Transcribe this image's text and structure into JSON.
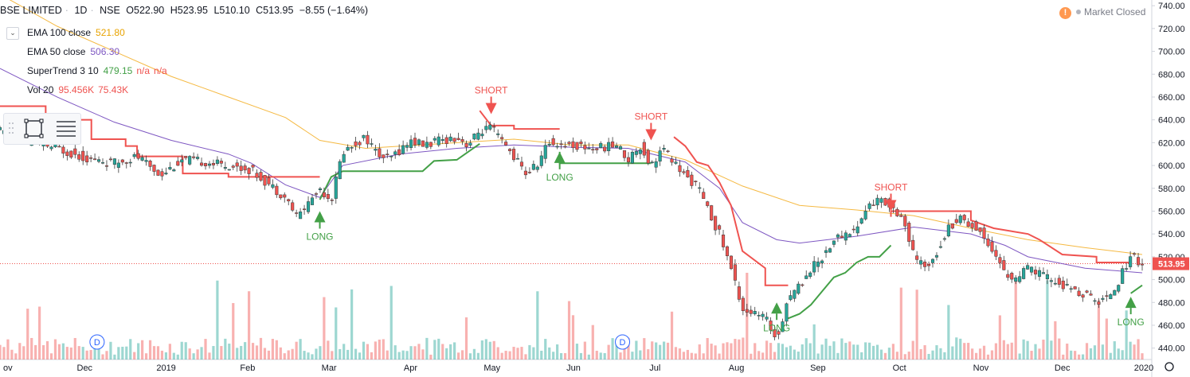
{
  "symbol": {
    "name": "BSE LIMITED",
    "interval": "1D",
    "exchange": "NSE",
    "open": "O522.90",
    "high": "H523.95",
    "low": "L510.10",
    "close": "C513.95",
    "change": "−8.55 (−1.64%)"
  },
  "status": {
    "alert_icon": "!",
    "market_label": "Market Closed"
  },
  "indicators": [
    {
      "name": "EMA 100 close",
      "values": [
        "521.80"
      ],
      "colors": [
        "#e8a300"
      ]
    },
    {
      "name": "EMA 50 close",
      "values": [
        "506.30"
      ],
      "colors": [
        "#7e57c2"
      ]
    },
    {
      "name": "SuperTrend 3 10",
      "values": [
        "479.15",
        "n/a",
        "n/a"
      ],
      "colors": [
        "#43a047",
        "#ef5350",
        "#ef5350"
      ]
    },
    {
      "name": "Vol 20",
      "values": [
        "95.456K",
        "75.43K"
      ],
      "colors": [
        "#ef5350",
        "#ef5350"
      ]
    }
  ],
  "toolbar_icons": [
    "rectangle-tool-icon",
    "menu-lines-icon"
  ],
  "chart_data": {
    "type": "candlestick",
    "ylim": [
      430,
      745
    ],
    "y_ticks": [
      "440.00",
      "460.00",
      "480.00",
      "500.00",
      "520.00",
      "540.00",
      "560.00",
      "580.00",
      "600.00",
      "620.00",
      "640.00",
      "660.00",
      "680.00",
      "700.00",
      "720.00",
      "740.00"
    ],
    "x_ticks": [
      "ov",
      "Dec",
      "2019",
      "Feb",
      "Mar",
      "Apr",
      "May",
      "Jun",
      "Jul",
      "Aug",
      "Sep",
      "Oct",
      "Nov",
      "Dec",
      "2020"
    ],
    "last_price_label": "513.95",
    "colors": {
      "up": "#26a69a",
      "down": "#ef5350",
      "ema100": "#f5b942",
      "ema50": "#7e57c2",
      "st_up": "#43a047",
      "st_down": "#ef5350",
      "last_price_line": "#ef5350"
    },
    "price_path": [
      [
        0,
        630
      ],
      [
        0.02,
        622
      ],
      [
        0.05,
        615
      ],
      [
        0.08,
        605
      ],
      [
        0.1,
        602
      ],
      [
        0.12,
        608
      ],
      [
        0.14,
        592
      ],
      [
        0.16,
        605
      ],
      [
        0.18,
        603
      ],
      [
        0.2,
        600
      ],
      [
        0.22,
        596
      ],
      [
        0.24,
        580
      ],
      [
        0.25,
        572
      ],
      [
        0.26,
        555
      ],
      [
        0.28,
        580
      ],
      [
        0.29,
        570
      ],
      [
        0.3,
        612
      ],
      [
        0.32,
        625
      ],
      [
        0.33,
        610
      ],
      [
        0.34,
        605
      ],
      [
        0.36,
        622
      ],
      [
        0.37,
        618
      ],
      [
        0.4,
        625
      ],
      [
        0.41,
        618
      ],
      [
        0.42,
        630
      ],
      [
        0.43,
        633
      ],
      [
        0.44,
        620
      ],
      [
        0.45,
        608
      ],
      [
        0.46,
        593
      ],
      [
        0.47,
        600
      ],
      [
        0.48,
        620
      ],
      [
        0.5,
        618
      ],
      [
        0.52,
        615
      ],
      [
        0.54,
        618
      ],
      [
        0.55,
        605
      ],
      [
        0.56,
        618
      ],
      [
        0.57,
        600
      ],
      [
        0.58,
        615
      ],
      [
        0.6,
        590
      ],
      [
        0.61,
        583
      ],
      [
        0.62,
        560
      ],
      [
        0.63,
        540
      ],
      [
        0.64,
        510
      ],
      [
        0.65,
        475
      ],
      [
        0.66,
        470
      ],
      [
        0.67,
        466
      ],
      [
        0.68,
        448
      ],
      [
        0.69,
        485
      ],
      [
        0.7,
        495
      ],
      [
        0.71,
        510
      ],
      [
        0.72,
        520
      ],
      [
        0.73,
        535
      ],
      [
        0.74,
        540
      ],
      [
        0.75,
        545
      ],
      [
        0.76,
        565
      ],
      [
        0.77,
        570
      ],
      [
        0.78,
        565
      ],
      [
        0.79,
        555
      ],
      [
        0.8,
        520
      ],
      [
        0.81,
        510
      ],
      [
        0.82,
        525
      ],
      [
        0.83,
        545
      ],
      [
        0.84,
        555
      ],
      [
        0.85,
        548
      ],
      [
        0.86,
        540
      ],
      [
        0.87,
        525
      ],
      [
        0.88,
        505
      ],
      [
        0.89,
        500
      ],
      [
        0.9,
        510
      ],
      [
        0.91,
        505
      ],
      [
        0.92,
        500
      ],
      [
        0.93,
        495
      ],
      [
        0.94,
        490
      ],
      [
        0.95,
        487
      ],
      [
        0.96,
        480
      ],
      [
        0.97,
        485
      ],
      [
        0.98,
        500
      ],
      [
        0.99,
        522
      ],
      [
        1,
        514
      ]
    ],
    "ema100_path": [
      [
        0,
        750
      ],
      [
        0.05,
        722
      ],
      [
        0.1,
        700
      ],
      [
        0.15,
        678
      ],
      [
        0.2,
        660
      ],
      [
        0.25,
        642
      ],
      [
        0.28,
        622
      ],
      [
        0.32,
        615
      ],
      [
        0.4,
        620
      ],
      [
        0.45,
        623
      ],
      [
        0.5,
        618
      ],
      [
        0.55,
        618
      ],
      [
        0.6,
        605
      ],
      [
        0.65,
        582
      ],
      [
        0.7,
        565
      ],
      [
        0.75,
        561
      ],
      [
        0.8,
        556
      ],
      [
        0.85,
        545
      ],
      [
        0.9,
        535
      ],
      [
        0.95,
        528
      ],
      [
        1,
        522
      ]
    ],
    "ema50_path": [
      [
        0,
        685
      ],
      [
        0.05,
        660
      ],
      [
        0.1,
        638
      ],
      [
        0.15,
        622
      ],
      [
        0.2,
        610
      ],
      [
        0.22,
        602
      ],
      [
        0.25,
        583
      ],
      [
        0.28,
        572
      ],
      [
        0.3,
        600
      ],
      [
        0.35,
        610
      ],
      [
        0.4,
        615
      ],
      [
        0.45,
        618
      ],
      [
        0.5,
        616
      ],
      [
        0.55,
        615
      ],
      [
        0.6,
        603
      ],
      [
        0.63,
        580
      ],
      [
        0.65,
        550
      ],
      [
        0.68,
        535
      ],
      [
        0.7,
        532
      ],
      [
        0.75,
        538
      ],
      [
        0.8,
        546
      ],
      [
        0.85,
        540
      ],
      [
        0.88,
        530
      ],
      [
        0.9,
        520
      ],
      [
        0.95,
        510
      ],
      [
        1,
        506
      ]
    ],
    "supertrend_down": [
      [
        [
          0,
          652
        ],
        [
          0.04,
          652
        ],
        [
          0.04,
          640
        ],
        [
          0.08,
          640
        ],
        [
          0.08,
          623
        ],
        [
          0.11,
          623
        ],
        [
          0.11,
          617
        ],
        [
          0.12,
          617
        ],
        [
          0.12,
          608
        ],
        [
          0.16,
          608
        ],
        [
          0.16,
          593
        ],
        [
          0.2,
          593
        ],
        [
          0.2,
          590
        ],
        [
          0.28,
          590
        ]
      ],
      [
        [
          0.42,
          648
        ],
        [
          0.43,
          635
        ],
        [
          0.45,
          635
        ],
        [
          0.45,
          632
        ],
        [
          0.49,
          632
        ]
      ],
      [
        [
          0.59,
          625
        ],
        [
          0.6,
          617
        ],
        [
          0.61,
          603
        ],
        [
          0.62,
          600
        ],
        [
          0.63,
          585
        ],
        [
          0.64,
          565
        ],
        [
          0.65,
          525
        ],
        [
          0.67,
          510
        ],
        [
          0.67,
          495
        ],
        [
          0.69,
          495
        ]
      ],
      [
        [
          0.78,
          555
        ],
        [
          0.78,
          560
        ],
        [
          0.83,
          560
        ],
        [
          0.85,
          560
        ],
        [
          0.85,
          552
        ],
        [
          0.87,
          545
        ],
        [
          0.9,
          540
        ],
        [
          0.91,
          535
        ],
        [
          0.93,
          522
        ],
        [
          0.96,
          520
        ],
        [
          0.96,
          515
        ],
        [
          0.99,
          515
        ]
      ]
    ],
    "supertrend_up": [
      [
        [
          0.28,
          570
        ],
        [
          0.29,
          590
        ],
        [
          0.3,
          595
        ],
        [
          0.37,
          595
        ],
        [
          0.38,
          604
        ],
        [
          0.4,
          605
        ],
        [
          0.41,
          612
        ],
        [
          0.42,
          619
        ]
      ],
      [
        [
          0.49,
          612
        ],
        [
          0.49,
          602
        ],
        [
          0.57,
          602
        ]
      ],
      [
        [
          0.69,
          466
        ],
        [
          0.7,
          470
        ],
        [
          0.71,
          478
        ],
        [
          0.72,
          490
        ],
        [
          0.73,
          502
        ],
        [
          0.74,
          506
        ],
        [
          0.75,
          515
        ],
        [
          0.76,
          520
        ],
        [
          0.77,
          520
        ],
        [
          0.78,
          530
        ]
      ],
      [
        [
          0.99,
          488
        ],
        [
          1,
          495
        ]
      ]
    ],
    "signals": [
      {
        "label": "LONG",
        "type": "buy",
        "x": 0.28,
        "y": 560
      },
      {
        "label": "SHORT",
        "type": "sell",
        "x": 0.43,
        "y": 645
      },
      {
        "label": "LONG",
        "type": "buy",
        "x": 0.49,
        "y": 612
      },
      {
        "label": "SHORT",
        "type": "sell",
        "x": 0.57,
        "y": 622
      },
      {
        "label": "LONG",
        "type": "buy",
        "x": 0.68,
        "y": 480
      },
      {
        "label": "SHORT",
        "type": "sell",
        "x": 0.78,
        "y": 560
      },
      {
        "label": "LONG",
        "type": "buy",
        "x": 0.99,
        "y": 485
      }
    ],
    "dividend_markers": [
      {
        "label": "D",
        "x": 0.085
      },
      {
        "label": "D",
        "x": 0.545
      }
    ]
  }
}
